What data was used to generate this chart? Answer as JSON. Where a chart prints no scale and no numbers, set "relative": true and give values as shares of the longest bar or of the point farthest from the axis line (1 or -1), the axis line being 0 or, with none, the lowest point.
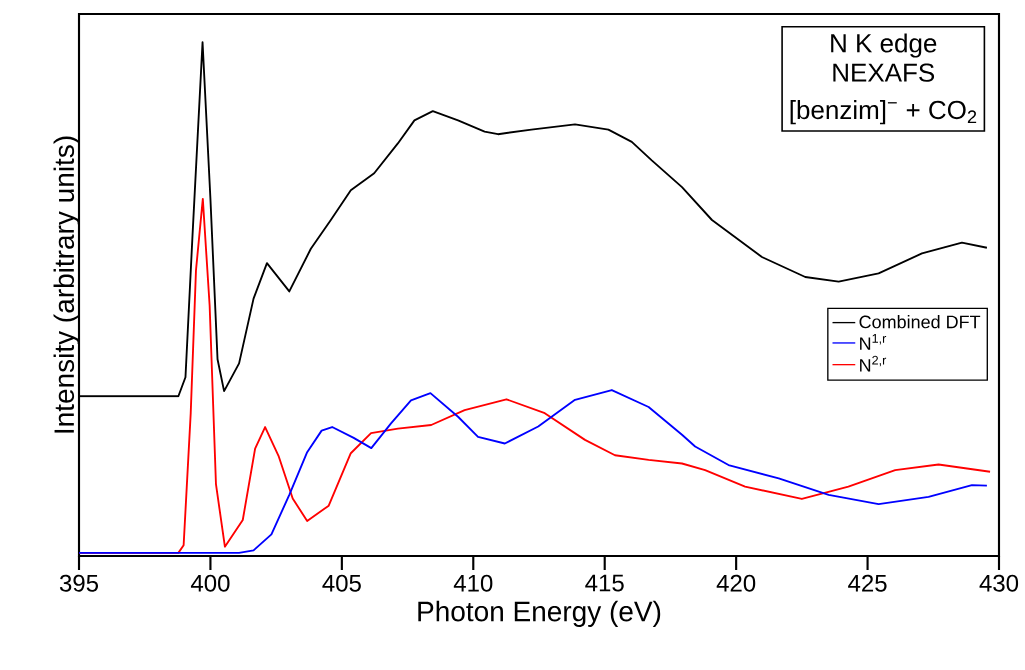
{
  "chart_data": {
    "type": "line",
    "relative": true,
    "xlabel": "Photon Energy (eV)",
    "ylabel": "Intensity (arbitrary units)",
    "xlim": [
      395,
      430
    ],
    "xticks": [
      395,
      400,
      405,
      410,
      415,
      420,
      425,
      430
    ],
    "legend": "right",
    "line_style": "solid",
    "marker": "none",
    "grid": false,
    "tick_labels": "x",
    "annotations": [
      "N K edge",
      "NEXAFS",
      "[benzim]$^{−}$ + CO$_{2}$"
    ],
    "series": [
      {
        "name": "Combined DFT",
        "color": "#000000",
        "x": [
          395,
          398.78,
          399.05,
          399.32,
          399.7,
          400.0,
          400.27,
          400.52,
          401.09,
          401.64,
          402.15,
          403.0,
          403.82,
          404.58,
          405.34,
          406.23,
          407.13,
          407.76,
          408.46,
          409.42,
          410.43,
          410.94,
          412.21,
          413.87,
          415.14,
          416.03,
          416.79,
          417.94,
          419.08,
          420.98,
          422.63,
          423.9,
          425.42,
          427.07,
          428.59,
          429.54
        ],
        "values": [
          0.311,
          0.311,
          0.348,
          0.626,
          1.0,
          0.695,
          0.383,
          0.321,
          0.375,
          0.501,
          0.57,
          0.515,
          0.598,
          0.654,
          0.712,
          0.745,
          0.803,
          0.848,
          0.866,
          0.848,
          0.826,
          0.821,
          0.83,
          0.84,
          0.83,
          0.806,
          0.77,
          0.718,
          0.654,
          0.582,
          0.543,
          0.534,
          0.55,
          0.589,
          0.61,
          0.6
        ]
      },
      {
        "name": "N$^{1,r}$",
        "color": "#0000ff",
        "x": [
          395,
          401.09,
          401.64,
          402.32,
          403.0,
          403.68,
          404.23,
          404.63,
          405.45,
          406.12,
          406.87,
          407.63,
          408.37,
          409.42,
          410.18,
          411.2,
          412.47,
          413.87,
          415.27,
          416.67,
          417.94,
          418.44,
          419.71,
          421.62,
          423.52,
          425.42,
          427.32,
          428.97,
          429.54
        ],
        "values": [
          0.006,
          0.006,
          0.011,
          0.042,
          0.119,
          0.202,
          0.244,
          0.251,
          0.23,
          0.21,
          0.258,
          0.303,
          0.317,
          0.271,
          0.232,
          0.219,
          0.252,
          0.304,
          0.323,
          0.29,
          0.236,
          0.213,
          0.177,
          0.151,
          0.119,
          0.101,
          0.115,
          0.138,
          0.137
        ]
      },
      {
        "name": "N$^{2,r}$",
        "color": "#ff0000",
        "x": [
          395,
          398.78,
          398.98,
          399.25,
          399.45,
          399.71,
          399.97,
          400.21,
          400.55,
          401.23,
          401.7,
          402.08,
          402.59,
          403.13,
          403.68,
          404.5,
          405.34,
          406.11,
          407.13,
          408.4,
          409.67,
          411.26,
          412.72,
          414.25,
          415.39,
          416.67,
          417.94,
          418.82,
          420.34,
          422.5,
          424.27,
          426.05,
          427.7,
          429.66
        ],
        "values": [
          0.006,
          0.006,
          0.021,
          0.278,
          0.556,
          0.695,
          0.487,
          0.14,
          0.018,
          0.07,
          0.209,
          0.251,
          0.195,
          0.112,
          0.068,
          0.098,
          0.2,
          0.239,
          0.248,
          0.255,
          0.284,
          0.305,
          0.278,
          0.226,
          0.196,
          0.187,
          0.18,
          0.167,
          0.135,
          0.111,
          0.135,
          0.167,
          0.178,
          0.164
        ]
      }
    ]
  }
}
